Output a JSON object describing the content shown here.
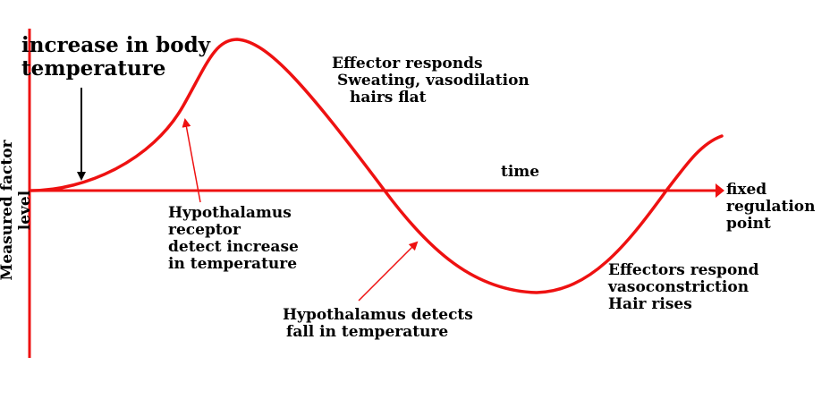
{
  "diagram": {
    "y_axis_label": "Measured factor level",
    "x_axis_label": "time",
    "setpoint_label": [
      "fixed",
      "regulation",
      "point"
    ],
    "annotations": {
      "increase": [
        "increase in body",
        "temperature"
      ],
      "effector_high": [
        "Effector responds",
        "Sweating, vasodilation",
        "hairs flat"
      ],
      "receptor": [
        "Hypothalamus",
        "receptor",
        "detect increase",
        "in temperature"
      ],
      "detects_fall": [
        "Hypothalamus detects",
        "fall in temperature"
      ],
      "effectors_low": [
        "Effectors respond",
        "vasoconstriction",
        "Hair rises"
      ]
    },
    "colors": {
      "curve": "#ee1111",
      "axis": "#ee1111",
      "text": "#000000",
      "arrow_black": "#000000"
    }
  }
}
